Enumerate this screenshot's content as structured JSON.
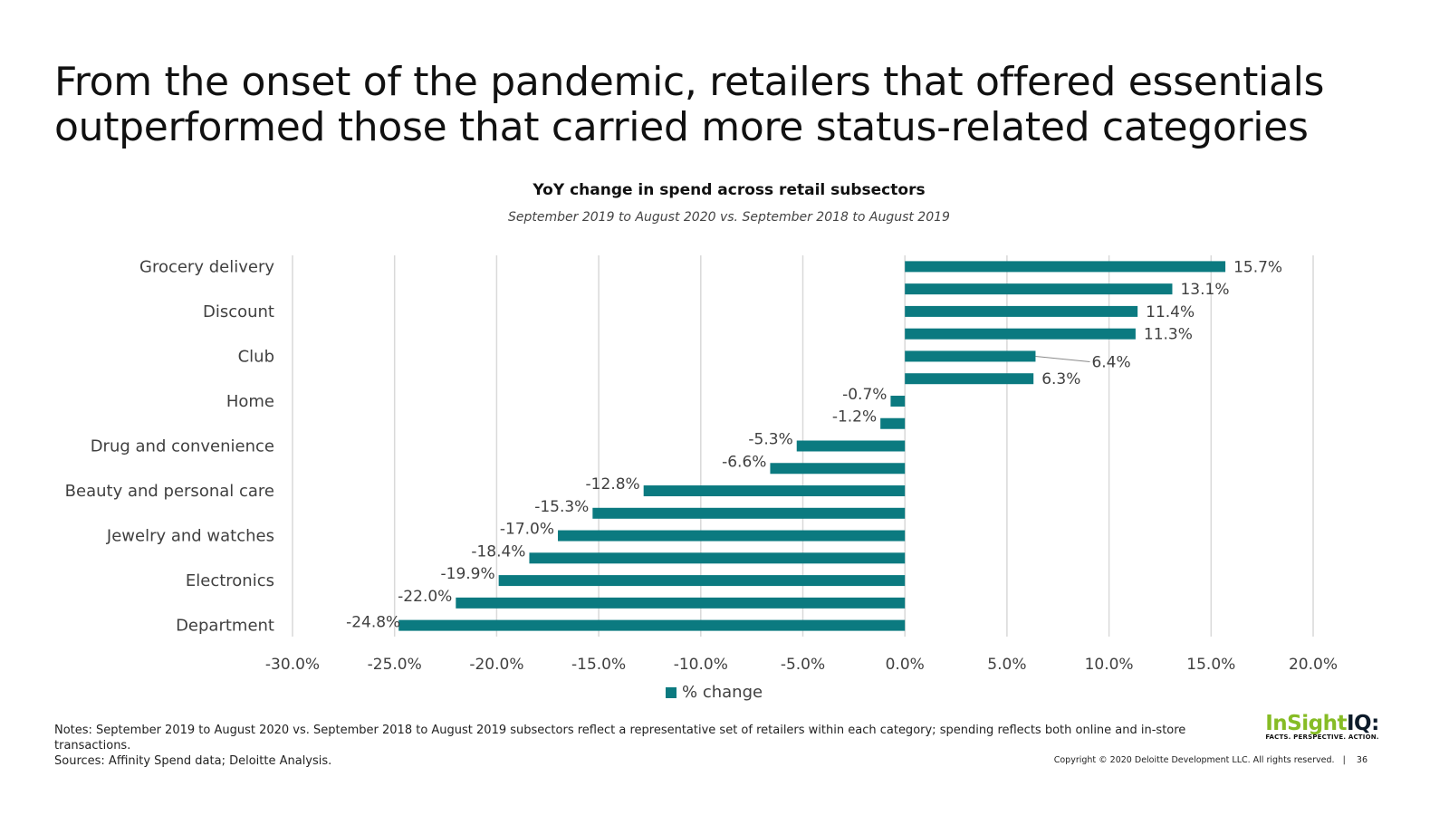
{
  "slide": {
    "title": "From the onset of the pandemic, retailers that offered essentials outperformed those that carried more status-related categories",
    "notes": "Notes: September 2019 to August 2020 vs. September 2018 to August 2019 subsectors reflect a representative set of retailers within each category; spending reflects both online and in-store transactions.",
    "sources": "Sources: Affinity Spend data; Deloitte Analysis.",
    "copyright": "Copyright © 2020 Deloitte Development LLC. All rights reserved.",
    "page_number": "36",
    "logo": {
      "part1": "InSight",
      "part2": "IQ:",
      "tagline": "FACTS. PERSPECTIVE. ACTION."
    }
  },
  "chart_data": {
    "type": "bar",
    "orientation": "horizontal",
    "title": "YoY change in spend across retail subsectors",
    "subtitle": "September 2019 to August 2020 vs. September 2018 to August 2019",
    "categories": [
      "Grocery delivery",
      "",
      "Discount",
      "",
      "Club",
      "",
      "Home",
      "",
      "Drug and convenience",
      "",
      "Beauty and personal care",
      "",
      "Jewelry and watches",
      "",
      "Electronics",
      "",
      "Department"
    ],
    "series": [
      {
        "name": "% change",
        "color": "#0b7a80",
        "values": [
          15.7,
          13.1,
          11.4,
          11.3,
          6.4,
          6.3,
          -0.7,
          -1.2,
          -5.3,
          -6.6,
          -12.8,
          -15.3,
          -17.0,
          -18.4,
          -19.9,
          -22.0,
          -24.8
        ]
      }
    ],
    "data_labels": [
      "15.7%",
      "13.1%",
      "11.4%",
      "11.3%",
      "6.4%",
      "6.3%",
      "-0.7%",
      "-1.2%",
      "-5.3%",
      "-6.6%",
      "-12.8%",
      "-15.3%",
      "-17.0%",
      "-18.4%",
      "-19.9%",
      "-22.0%",
      "-24.8%"
    ],
    "xlim": [
      -30,
      20
    ],
    "x_ticks": [
      -30,
      -25,
      -20,
      -15,
      -10,
      -5,
      0,
      5,
      10,
      15,
      20
    ],
    "x_tick_labels": [
      "-30.0%",
      "-25.0%",
      "-20.0%",
      "-15.0%",
      "-10.0%",
      "-5.0%",
      "0.0%",
      "5.0%",
      "10.0%",
      "15.0%",
      "20.0%"
    ],
    "legend": {
      "position": "bottom",
      "label": "% change"
    },
    "grid": "vertical",
    "colors": {
      "bar": "#0b7a80",
      "grid": "#d9d9d9",
      "text": "#404040"
    }
  }
}
